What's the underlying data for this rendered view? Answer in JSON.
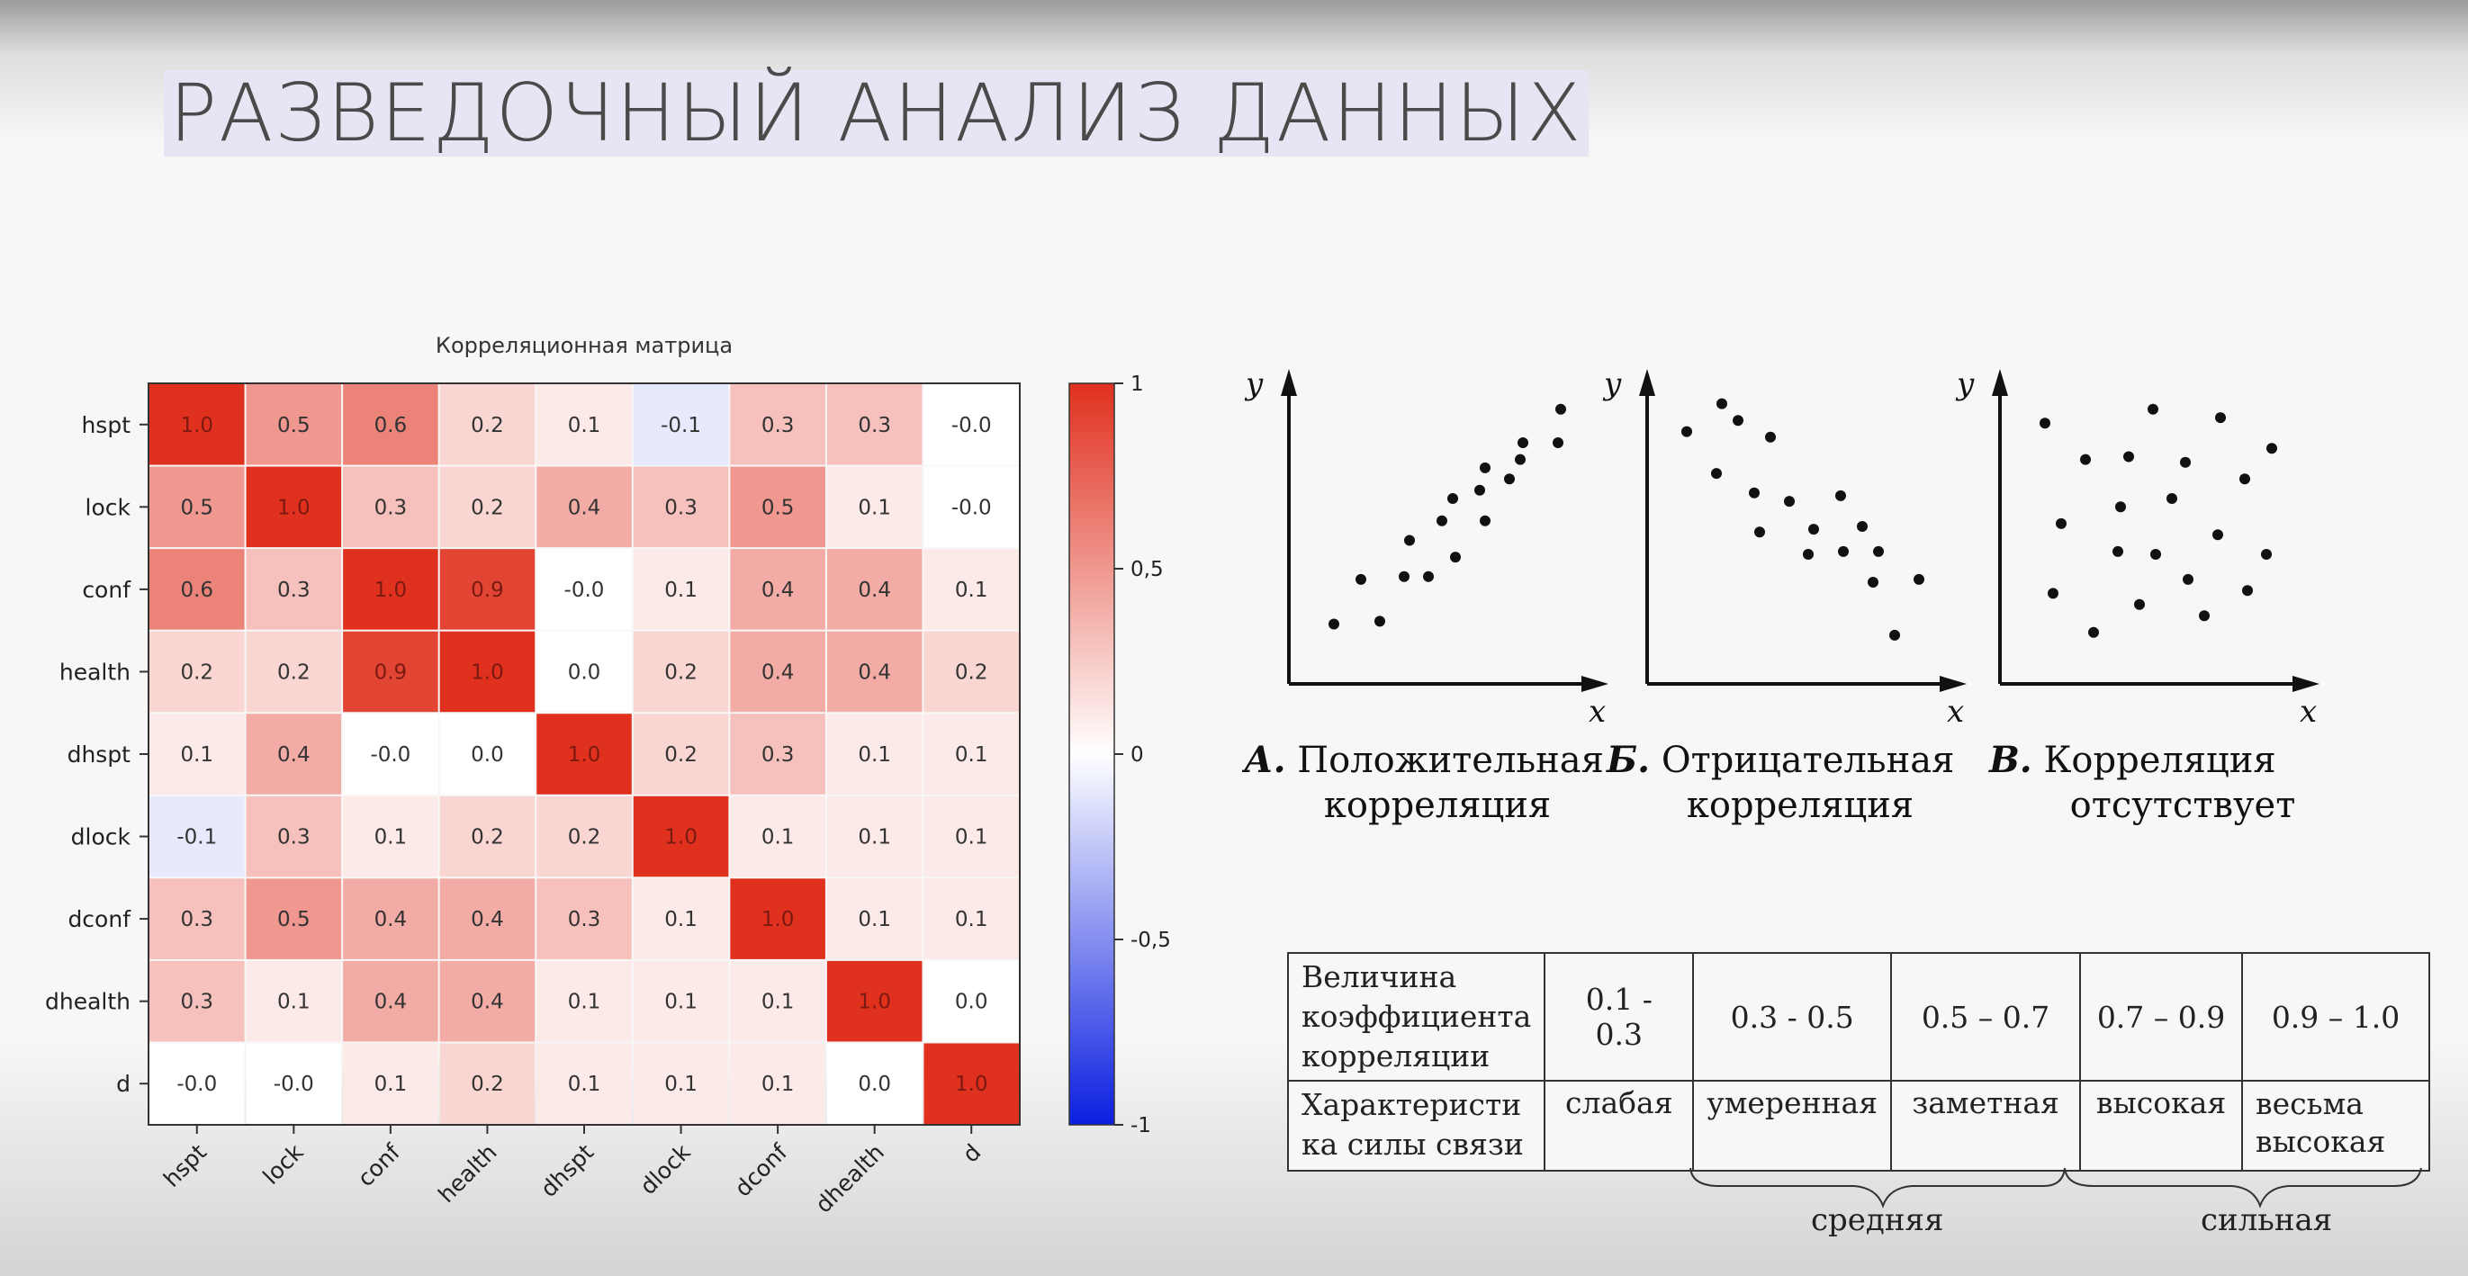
{
  "slide": {
    "title": "РАЗВЕДОЧНЫЙ АНАЛИЗ ДАННЫХ"
  },
  "chart_data": [
    {
      "type": "heatmap",
      "title": "Корреляционная матрица",
      "rows": [
        "hspt",
        "lock",
        "conf",
        "health",
        "dhspt",
        "dlock",
        "dconf",
        "dhealth",
        "d"
      ],
      "cols": [
        "hspt",
        "lock",
        "conf",
        "health",
        "dhspt",
        "dlock",
        "dconf",
        "dhealth",
        "d"
      ],
      "values": [
        [
          1.0,
          0.5,
          0.6,
          0.2,
          0.1,
          -0.1,
          0.3,
          0.3,
          -0.0
        ],
        [
          0.5,
          1.0,
          0.3,
          0.2,
          0.4,
          0.3,
          0.5,
          0.1,
          -0.0
        ],
        [
          0.6,
          0.3,
          1.0,
          0.9,
          -0.0,
          0.1,
          0.4,
          0.4,
          0.1
        ],
        [
          0.2,
          0.2,
          0.9,
          1.0,
          0.0,
          0.2,
          0.4,
          0.4,
          0.2
        ],
        [
          0.1,
          0.4,
          -0.0,
          0.0,
          1.0,
          0.2,
          0.3,
          0.1,
          0.1
        ],
        [
          -0.1,
          0.3,
          0.1,
          0.2,
          0.2,
          1.0,
          0.1,
          0.1,
          0.1
        ],
        [
          0.3,
          0.5,
          0.4,
          0.4,
          0.3,
          0.1,
          1.0,
          0.1,
          0.1
        ],
        [
          0.3,
          0.1,
          0.4,
          0.4,
          0.1,
          0.1,
          0.1,
          1.0,
          0.0
        ],
        [
          -0.0,
          -0.0,
          0.1,
          0.2,
          0.1,
          0.1,
          0.1,
          0.0,
          1.0
        ]
      ],
      "labels": [
        [
          "1.0",
          "0.5",
          "0.6",
          "0.2",
          "0.1",
          "-0.1",
          "0.3",
          "0.3",
          "-0.0"
        ],
        [
          "0.5",
          "1.0",
          "0.3",
          "0.2",
          "0.4",
          "0.3",
          "0.5",
          "0.1",
          "-0.0"
        ],
        [
          "0.6",
          "0.3",
          "1.0",
          "0.9",
          "-0.0",
          "0.1",
          "0.4",
          "0.4",
          "0.1"
        ],
        [
          "0.2",
          "0.2",
          "0.9",
          "1.0",
          "0.0",
          "0.2",
          "0.4",
          "0.4",
          "0.2"
        ],
        [
          "0.1",
          "0.4",
          "-0.0",
          "0.0",
          "1.0",
          "0.2",
          "0.3",
          "0.1",
          "0.1"
        ],
        [
          "-0.1",
          "0.3",
          "0.1",
          "0.2",
          "0.2",
          "1.0",
          "0.1",
          "0.1",
          "0.1"
        ],
        [
          "0.3",
          "0.5",
          "0.4",
          "0.4",
          "0.3",
          "0.1",
          "1.0",
          "0.1",
          "0.1"
        ],
        [
          "0.3",
          "0.1",
          "0.4",
          "0.4",
          "0.1",
          "0.1",
          "0.1",
          "1.0",
          "0.0"
        ],
        [
          "-0.0",
          "-0.0",
          "0.1",
          "0.2",
          "0.1",
          "0.1",
          "0.1",
          "0.0",
          "1.0"
        ]
      ],
      "colorbar": {
        "range": [
          -1,
          1
        ],
        "ticks": [
          1,
          0.5,
          0,
          -0.5,
          -1
        ],
        "tick_labels": [
          "1",
          "0,5",
          "0",
          "-0,5",
          "-1"
        ]
      },
      "colors": {
        "positive": "#e0301e",
        "zero": "#ffffff",
        "negative": "#0a1ee0"
      }
    },
    {
      "type": "scatter",
      "title": "",
      "caption_letter": "А.",
      "caption_lines": [
        "Положительная",
        "корреляция"
      ],
      "xlabel": "x",
      "ylabel": "y",
      "points": [
        [
          0.1,
          0.15
        ],
        [
          0.27,
          0.16
        ],
        [
          0.2,
          0.31
        ],
        [
          0.36,
          0.32
        ],
        [
          0.45,
          0.32
        ],
        [
          0.38,
          0.45
        ],
        [
          0.55,
          0.39
        ],
        [
          0.5,
          0.52
        ],
        [
          0.54,
          0.6
        ],
        [
          0.66,
          0.52
        ],
        [
          0.64,
          0.63
        ],
        [
          0.66,
          0.71
        ],
        [
          0.75,
          0.67
        ],
        [
          0.79,
          0.74
        ],
        [
          0.8,
          0.8
        ],
        [
          0.93,
          0.8
        ],
        [
          0.94,
          0.92
        ]
      ]
    },
    {
      "type": "scatter",
      "title": "",
      "caption_letter": "Б.",
      "caption_lines": [
        "Отрицательная",
        "корреляция"
      ],
      "xlabel": "x",
      "ylabel": "y",
      "points": [
        [
          0.08,
          0.84
        ],
        [
          0.19,
          0.69
        ],
        [
          0.21,
          0.94
        ],
        [
          0.27,
          0.88
        ],
        [
          0.33,
          0.62
        ],
        [
          0.39,
          0.82
        ],
        [
          0.35,
          0.48
        ],
        [
          0.46,
          0.59
        ],
        [
          0.53,
          0.4
        ],
        [
          0.55,
          0.49
        ],
        [
          0.65,
          0.61
        ],
        [
          0.66,
          0.41
        ],
        [
          0.73,
          0.5
        ],
        [
          0.77,
          0.3
        ],
        [
          0.79,
          0.41
        ],
        [
          0.85,
          0.11
        ],
        [
          0.94,
          0.31
        ]
      ]
    },
    {
      "type": "scatter",
      "title": "",
      "caption_letter": "В.",
      "caption_lines": [
        "Корреляция",
        "отсутствует"
      ],
      "xlabel": "x",
      "ylabel": "y",
      "points": [
        [
          0.1,
          0.87
        ],
        [
          0.13,
          0.26
        ],
        [
          0.16,
          0.51
        ],
        [
          0.25,
          0.74
        ],
        [
          0.28,
          0.12
        ],
        [
          0.37,
          0.41
        ],
        [
          0.38,
          0.57
        ],
        [
          0.41,
          0.75
        ],
        [
          0.45,
          0.22
        ],
        [
          0.5,
          0.92
        ],
        [
          0.51,
          0.4
        ],
        [
          0.57,
          0.6
        ],
        [
          0.62,
          0.73
        ],
        [
          0.63,
          0.31
        ],
        [
          0.69,
          0.18
        ],
        [
          0.74,
          0.47
        ],
        [
          0.75,
          0.89
        ],
        [
          0.85,
          0.27
        ],
        [
          0.84,
          0.67
        ],
        [
          0.94,
          0.78
        ],
        [
          0.92,
          0.4
        ]
      ]
    }
  ],
  "strength_table": {
    "row1_header": "Величина коэффициента корреляции",
    "row2_header": "Характеристи ка силы связи",
    "ranges": [
      "0.1 - 0.3",
      "0.3 - 0.5",
      "0.5 – 0.7",
      "0.7 – 0.9",
      "0.9 – 1.0"
    ],
    "strengths": [
      "слабая",
      "умеренная",
      "заметная",
      "высокая",
      "весьма высокая"
    ],
    "groups": [
      "средняя",
      "сильная"
    ]
  }
}
